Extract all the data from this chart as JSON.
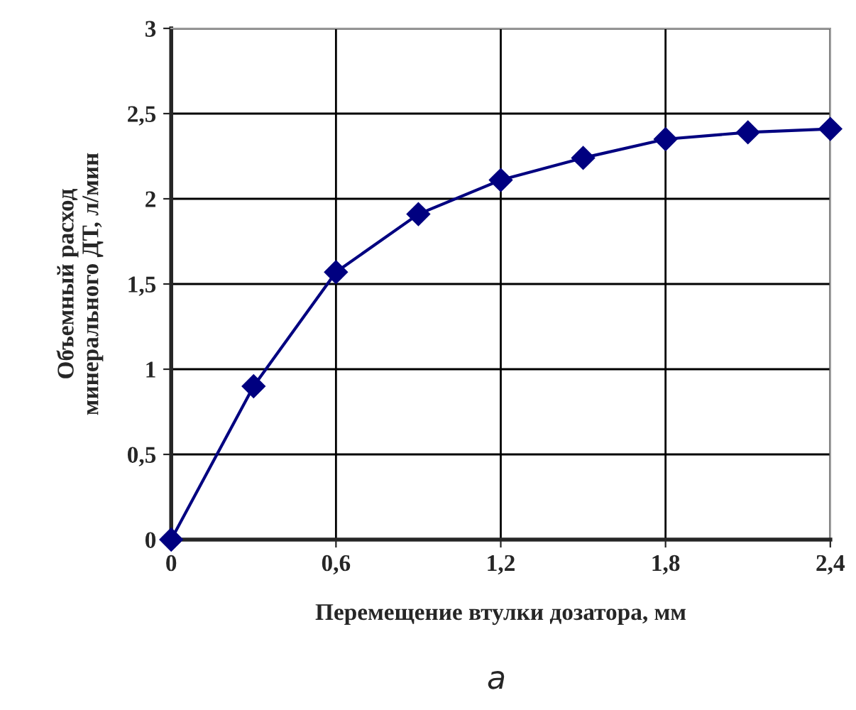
{
  "chart_data": {
    "type": "line",
    "xlabel": "Перемещение втулки дозатора, мм",
    "ylabel": "Объемный расход\nминерального ДТ, л/мин",
    "x": [
      0,
      0.3,
      0.6,
      0.9,
      1.2,
      1.5,
      1.8,
      2.1,
      2.4
    ],
    "series": [
      {
        "color": "#000080",
        "values": [
          0,
          0.9,
          1.57,
          1.91,
          2.11,
          2.24,
          2.35,
          2.39,
          2.41
        ]
      }
    ],
    "xlim": [
      0,
      2.4
    ],
    "ylim": [
      0,
      3
    ],
    "xticks": [
      0,
      {
        "value": 0.6,
        "label": "0,6"
      },
      {
        "value": 1.2,
        "label": "1,2"
      },
      {
        "value": 1.8,
        "label": "1,8"
      },
      {
        "value": 2.4,
        "label": "2,4"
      }
    ],
    "yticks": [
      0,
      {
        "value": 0.5,
        "label": "0,5"
      },
      1,
      {
        "value": 1.5,
        "label": "1,5"
      },
      2,
      {
        "value": 2.5,
        "label": "2,5"
      },
      3
    ],
    "grid": true,
    "marker": "diamond",
    "line_style": "solid",
    "annotations": [
      "а"
    ]
  }
}
